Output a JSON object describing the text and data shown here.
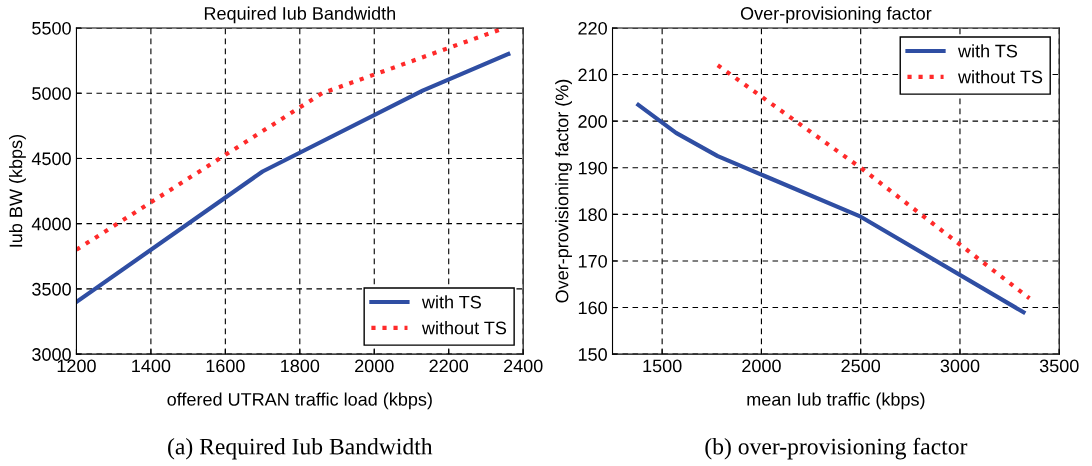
{
  "chart_data": [
    {
      "type": "line",
      "title": "Required Iub Bandwidth",
      "xlabel": "offered UTRAN traffic load (kbps)",
      "ylabel": "Iub BW (kbps)",
      "xlim": [
        1200,
        2400
      ],
      "xticks": [
        1200,
        1400,
        1600,
        1800,
        2000,
        2200,
        2400
      ],
      "ylim": [
        3000,
        5500
      ],
      "yticks": [
        3000,
        3500,
        4000,
        4500,
        5000,
        5500
      ],
      "grid": true,
      "legend": "bottom right",
      "annotations": [
        "(a) Required Iub Bandwidth"
      ],
      "series": [
        {
          "name": "with TS",
          "color": "#2f4ea3",
          "line_style": "solid",
          "x": [
            1200,
            1700,
            2130,
            2360
          ],
          "values": [
            3400,
            4400,
            5020,
            5300
          ]
        },
        {
          "name": "without TS",
          "color": "#ff2a2a",
          "line_style": "dotted",
          "x": [
            1200,
            1860,
            2350
          ],
          "values": [
            3800,
            5000,
            5500
          ]
        }
      ]
    },
    {
      "type": "line",
      "title": "Over-provisioning factor",
      "xlabel": "mean Iub traffic (kbps)",
      "ylabel": "Over-provisioning factor (%)",
      "xlim": [
        1250,
        3500
      ],
      "xticks": [
        1500,
        2000,
        2500,
        3000,
        3500
      ],
      "ylim": [
        150,
        220
      ],
      "yticks": [
        150,
        160,
        170,
        180,
        190,
        200,
        210,
        220
      ],
      "grid": true,
      "legend": "top right",
      "annotations": [
        "(b) over-provisioning factor"
      ],
      "series": [
        {
          "name": "with TS",
          "color": "#2f4ea3",
          "line_style": "solid",
          "x": [
            1380,
            1570,
            1780,
            2500,
            3320
          ],
          "values": [
            203.5,
            197.5,
            192.5,
            179.5,
            159
          ]
        },
        {
          "name": "without TS",
          "color": "#ff2a2a",
          "line_style": "dotted",
          "x": [
            1780,
            2500,
            3350
          ],
          "values": [
            212,
            190,
            162
          ]
        }
      ]
    }
  ]
}
